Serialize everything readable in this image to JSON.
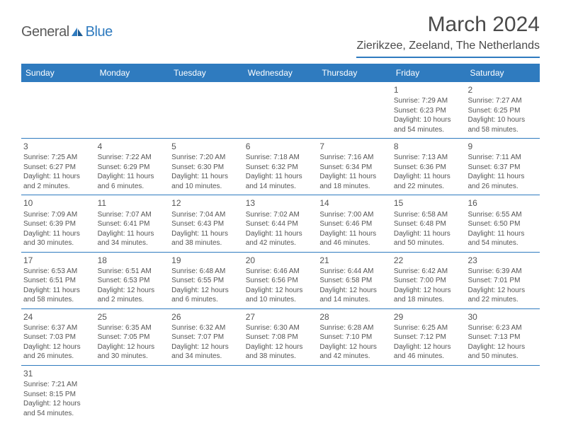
{
  "logo": {
    "general": "General",
    "blue": "Blue"
  },
  "title": "March 2024",
  "location": "Zierikzee, Zeeland, The Netherlands",
  "dayNames": [
    "Sunday",
    "Monday",
    "Tuesday",
    "Wednesday",
    "Thursday",
    "Friday",
    "Saturday"
  ],
  "colors": {
    "brand_blue": "#2f7bbf",
    "text_gray": "#4a4a4a",
    "cell_text": "#555555",
    "background": "#ffffff"
  },
  "weeks": [
    [
      null,
      null,
      null,
      null,
      null,
      {
        "n": "1",
        "sr": "Sunrise: 7:29 AM",
        "ss": "Sunset: 6:23 PM",
        "dl1": "Daylight: 10 hours",
        "dl2": "and 54 minutes."
      },
      {
        "n": "2",
        "sr": "Sunrise: 7:27 AM",
        "ss": "Sunset: 6:25 PM",
        "dl1": "Daylight: 10 hours",
        "dl2": "and 58 minutes."
      }
    ],
    [
      {
        "n": "3",
        "sr": "Sunrise: 7:25 AM",
        "ss": "Sunset: 6:27 PM",
        "dl1": "Daylight: 11 hours",
        "dl2": "and 2 minutes."
      },
      {
        "n": "4",
        "sr": "Sunrise: 7:22 AM",
        "ss": "Sunset: 6:29 PM",
        "dl1": "Daylight: 11 hours",
        "dl2": "and 6 minutes."
      },
      {
        "n": "5",
        "sr": "Sunrise: 7:20 AM",
        "ss": "Sunset: 6:30 PM",
        "dl1": "Daylight: 11 hours",
        "dl2": "and 10 minutes."
      },
      {
        "n": "6",
        "sr": "Sunrise: 7:18 AM",
        "ss": "Sunset: 6:32 PM",
        "dl1": "Daylight: 11 hours",
        "dl2": "and 14 minutes."
      },
      {
        "n": "7",
        "sr": "Sunrise: 7:16 AM",
        "ss": "Sunset: 6:34 PM",
        "dl1": "Daylight: 11 hours",
        "dl2": "and 18 minutes."
      },
      {
        "n": "8",
        "sr": "Sunrise: 7:13 AM",
        "ss": "Sunset: 6:36 PM",
        "dl1": "Daylight: 11 hours",
        "dl2": "and 22 minutes."
      },
      {
        "n": "9",
        "sr": "Sunrise: 7:11 AM",
        "ss": "Sunset: 6:37 PM",
        "dl1": "Daylight: 11 hours",
        "dl2": "and 26 minutes."
      }
    ],
    [
      {
        "n": "10",
        "sr": "Sunrise: 7:09 AM",
        "ss": "Sunset: 6:39 PM",
        "dl1": "Daylight: 11 hours",
        "dl2": "and 30 minutes."
      },
      {
        "n": "11",
        "sr": "Sunrise: 7:07 AM",
        "ss": "Sunset: 6:41 PM",
        "dl1": "Daylight: 11 hours",
        "dl2": "and 34 minutes."
      },
      {
        "n": "12",
        "sr": "Sunrise: 7:04 AM",
        "ss": "Sunset: 6:43 PM",
        "dl1": "Daylight: 11 hours",
        "dl2": "and 38 minutes."
      },
      {
        "n": "13",
        "sr": "Sunrise: 7:02 AM",
        "ss": "Sunset: 6:44 PM",
        "dl1": "Daylight: 11 hours",
        "dl2": "and 42 minutes."
      },
      {
        "n": "14",
        "sr": "Sunrise: 7:00 AM",
        "ss": "Sunset: 6:46 PM",
        "dl1": "Daylight: 11 hours",
        "dl2": "and 46 minutes."
      },
      {
        "n": "15",
        "sr": "Sunrise: 6:58 AM",
        "ss": "Sunset: 6:48 PM",
        "dl1": "Daylight: 11 hours",
        "dl2": "and 50 minutes."
      },
      {
        "n": "16",
        "sr": "Sunrise: 6:55 AM",
        "ss": "Sunset: 6:50 PM",
        "dl1": "Daylight: 11 hours",
        "dl2": "and 54 minutes."
      }
    ],
    [
      {
        "n": "17",
        "sr": "Sunrise: 6:53 AM",
        "ss": "Sunset: 6:51 PM",
        "dl1": "Daylight: 11 hours",
        "dl2": "and 58 minutes."
      },
      {
        "n": "18",
        "sr": "Sunrise: 6:51 AM",
        "ss": "Sunset: 6:53 PM",
        "dl1": "Daylight: 12 hours",
        "dl2": "and 2 minutes."
      },
      {
        "n": "19",
        "sr": "Sunrise: 6:48 AM",
        "ss": "Sunset: 6:55 PM",
        "dl1": "Daylight: 12 hours",
        "dl2": "and 6 minutes."
      },
      {
        "n": "20",
        "sr": "Sunrise: 6:46 AM",
        "ss": "Sunset: 6:56 PM",
        "dl1": "Daylight: 12 hours",
        "dl2": "and 10 minutes."
      },
      {
        "n": "21",
        "sr": "Sunrise: 6:44 AM",
        "ss": "Sunset: 6:58 PM",
        "dl1": "Daylight: 12 hours",
        "dl2": "and 14 minutes."
      },
      {
        "n": "22",
        "sr": "Sunrise: 6:42 AM",
        "ss": "Sunset: 7:00 PM",
        "dl1": "Daylight: 12 hours",
        "dl2": "and 18 minutes."
      },
      {
        "n": "23",
        "sr": "Sunrise: 6:39 AM",
        "ss": "Sunset: 7:01 PM",
        "dl1": "Daylight: 12 hours",
        "dl2": "and 22 minutes."
      }
    ],
    [
      {
        "n": "24",
        "sr": "Sunrise: 6:37 AM",
        "ss": "Sunset: 7:03 PM",
        "dl1": "Daylight: 12 hours",
        "dl2": "and 26 minutes."
      },
      {
        "n": "25",
        "sr": "Sunrise: 6:35 AM",
        "ss": "Sunset: 7:05 PM",
        "dl1": "Daylight: 12 hours",
        "dl2": "and 30 minutes."
      },
      {
        "n": "26",
        "sr": "Sunrise: 6:32 AM",
        "ss": "Sunset: 7:07 PM",
        "dl1": "Daylight: 12 hours",
        "dl2": "and 34 minutes."
      },
      {
        "n": "27",
        "sr": "Sunrise: 6:30 AM",
        "ss": "Sunset: 7:08 PM",
        "dl1": "Daylight: 12 hours",
        "dl2": "and 38 minutes."
      },
      {
        "n": "28",
        "sr": "Sunrise: 6:28 AM",
        "ss": "Sunset: 7:10 PM",
        "dl1": "Daylight: 12 hours",
        "dl2": "and 42 minutes."
      },
      {
        "n": "29",
        "sr": "Sunrise: 6:25 AM",
        "ss": "Sunset: 7:12 PM",
        "dl1": "Daylight: 12 hours",
        "dl2": "and 46 minutes."
      },
      {
        "n": "30",
        "sr": "Sunrise: 6:23 AM",
        "ss": "Sunset: 7:13 PM",
        "dl1": "Daylight: 12 hours",
        "dl2": "and 50 minutes."
      }
    ],
    [
      {
        "n": "31",
        "sr": "Sunrise: 7:21 AM",
        "ss": "Sunset: 8:15 PM",
        "dl1": "Daylight: 12 hours",
        "dl2": "and 54 minutes."
      },
      null,
      null,
      null,
      null,
      null,
      null
    ]
  ]
}
